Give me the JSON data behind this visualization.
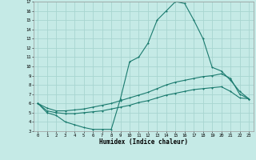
{
  "xlabel": "Humidex (Indice chaleur)",
  "bg_color": "#c5eae6",
  "grid_color": "#a8d5d0",
  "line_color": "#1a7a6e",
  "xlim": [
    -0.5,
    23.5
  ],
  "ylim": [
    3,
    17
  ],
  "xticks": [
    0,
    1,
    2,
    3,
    4,
    5,
    6,
    7,
    8,
    9,
    10,
    11,
    12,
    13,
    14,
    15,
    16,
    17,
    18,
    19,
    20,
    21,
    22,
    23
  ],
  "yticks": [
    3,
    4,
    5,
    6,
    7,
    8,
    9,
    10,
    11,
    12,
    13,
    14,
    15,
    16,
    17
  ],
  "series1_x": [
    0,
    1,
    2,
    3,
    4,
    5,
    6,
    7,
    8,
    9,
    10,
    11,
    12,
    13,
    14,
    15,
    16,
    17,
    18,
    19,
    20,
    21,
    22,
    23
  ],
  "series1_y": [
    6.0,
    5.0,
    4.7,
    4.0,
    3.7,
    3.4,
    3.2,
    3.2,
    3.2,
    6.5,
    10.5,
    11.0,
    12.5,
    15.0,
    16.0,
    17.0,
    16.8,
    15.0,
    13.0,
    9.9,
    9.5,
    8.5,
    7.3,
    6.5
  ],
  "series2_x": [
    0,
    1,
    2,
    3,
    4,
    5,
    6,
    7,
    8,
    9,
    10,
    11,
    12,
    13,
    14,
    15,
    16,
    17,
    18,
    19,
    20,
    21,
    22,
    23
  ],
  "series2_y": [
    6.0,
    5.5,
    5.2,
    5.2,
    5.3,
    5.4,
    5.6,
    5.8,
    6.0,
    6.3,
    6.6,
    6.9,
    7.2,
    7.6,
    8.0,
    8.3,
    8.5,
    8.7,
    8.9,
    9.0,
    9.2,
    8.7,
    7.0,
    6.5
  ],
  "series3_x": [
    0,
    1,
    2,
    3,
    4,
    5,
    6,
    7,
    8,
    9,
    10,
    11,
    12,
    13,
    14,
    15,
    16,
    17,
    18,
    19,
    20,
    21,
    22,
    23
  ],
  "series3_y": [
    6.0,
    5.2,
    5.0,
    4.9,
    4.9,
    5.0,
    5.1,
    5.2,
    5.4,
    5.6,
    5.8,
    6.1,
    6.3,
    6.6,
    6.9,
    7.1,
    7.3,
    7.5,
    7.6,
    7.7,
    7.8,
    7.3,
    6.6,
    6.5
  ]
}
